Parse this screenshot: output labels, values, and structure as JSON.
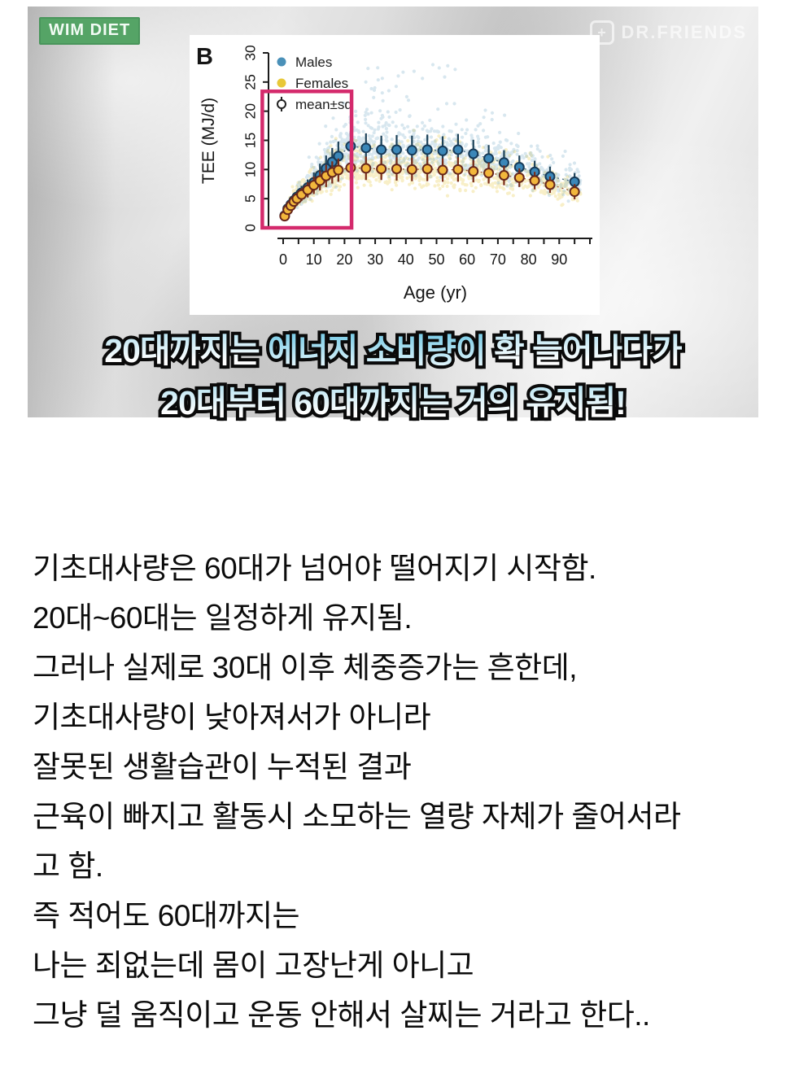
{
  "badge": {
    "label": "WIM DIET"
  },
  "watermark": {
    "label": "DR.FRIENDS",
    "icon": "plus-icon",
    "plus_glyph": "+"
  },
  "caption": {
    "lines": [
      {
        "segments": [
          {
            "text": "20대까지는 ",
            "em": false
          },
          {
            "text": "에너지 소비량이",
            "em": true
          },
          {
            "text": " 확 늘어나다가",
            "em": false
          }
        ]
      },
      {
        "segments": [
          {
            "text": "20대부터 60대까지는 거의 유지됨!",
            "em": false
          }
        ]
      }
    ]
  },
  "body_text": {
    "lines": [
      "기초대사량은 60대가 넘어야 떨어지기 시작함.",
      "20대~60대는 일정하게 유지됨.",
      "그러나 실제로 30대 이후 체중증가는 흔한데,",
      "기초대사량이 낮아져서가 아니라",
      "잘못된 생활습관이 누적된 결과",
      "근육이 빠지고 활동시 소모하는 열량 자체가 줄어서라",
      "고 함.",
      "즉 적어도 60대까지는",
      "나는 죄없는데 몸이 고장난게 아니고",
      "그냥 덜 움직이고 운동 안해서 살찌는 거라고 한다.."
    ]
  },
  "chart_data": {
    "type": "scatter",
    "panel_label": "B",
    "xlabel": "Age (yr)",
    "ylabel": "TEE (MJ/d)",
    "xlim": [
      -7,
      100
    ],
    "ylim": [
      0,
      30
    ],
    "x_ticks": [
      0,
      10,
      20,
      30,
      40,
      50,
      60,
      70,
      80,
      90
    ],
    "y_ticks": [
      0,
      5,
      10,
      15,
      20,
      25,
      30
    ],
    "grid": false,
    "legend_position": "top-left",
    "legend": [
      {
        "label": "Males",
        "type": "dot",
        "color": "#4a90b8"
      },
      {
        "label": "Females",
        "type": "dot",
        "color": "#e8c838"
      },
      {
        "label": "mean±sd",
        "type": "open-circle",
        "color": "#222222"
      }
    ],
    "series": [
      {
        "name": "Males mean±sd",
        "marker_fill": "#3b87b8",
        "marker_stroke": "#173a57",
        "errorbar_color": "#1d4259",
        "trend_color": "#4a6e8a",
        "x": [
          0.5,
          1.5,
          2.5,
          3.5,
          4.5,
          6,
          8,
          10,
          12,
          14,
          16,
          18,
          22,
          27,
          32,
          37,
          42,
          47,
          52,
          57,
          62,
          67,
          72,
          77,
          82,
          87,
          95
        ],
        "y": [
          2.1,
          3.3,
          4.0,
          4.7,
          5.3,
          6.0,
          6.9,
          7.8,
          9.0,
          10.2,
          11.3,
          12.3,
          14.0,
          13.7,
          13.4,
          13.4,
          13.3,
          13.4,
          13.2,
          13.4,
          12.7,
          11.9,
          11.2,
          10.4,
          9.6,
          8.8,
          7.9
        ],
        "sd": [
          0.7,
          0.9,
          1.0,
          1.0,
          1.1,
          1.2,
          1.4,
          1.7,
          2.0,
          2.2,
          2.4,
          2.5,
          2.6,
          2.5,
          2.4,
          2.5,
          2.5,
          2.6,
          2.5,
          2.7,
          2.4,
          2.3,
          2.1,
          2.0,
          1.9,
          1.7,
          1.5
        ]
      },
      {
        "name": "Females mean±sd",
        "marker_fill": "#f2b73c",
        "marker_stroke": "#66261b",
        "errorbar_color": "#7a2c18",
        "trend_color": "#9a5430",
        "x": [
          0.5,
          1.5,
          2.5,
          3.5,
          4.5,
          6,
          8,
          10,
          12,
          14,
          16,
          18,
          22,
          27,
          32,
          37,
          42,
          47,
          52,
          57,
          62,
          67,
          72,
          77,
          82,
          87,
          95
        ],
        "y": [
          2.0,
          3.1,
          3.8,
          4.5,
          5.0,
          5.7,
          6.5,
          7.3,
          8.1,
          8.9,
          9.5,
          9.9,
          10.3,
          10.2,
          10.1,
          10.1,
          10.0,
          10.1,
          9.9,
          10.0,
          9.7,
          9.4,
          9.0,
          8.6,
          8.1,
          7.4,
          6.2
        ],
        "sd": [
          0.6,
          0.8,
          0.9,
          0.9,
          1.0,
          1.1,
          1.3,
          1.5,
          1.7,
          1.9,
          1.9,
          2.0,
          2.0,
          2.0,
          1.9,
          2.0,
          2.0,
          2.1,
          2.0,
          2.1,
          1.9,
          1.8,
          1.7,
          1.6,
          1.5,
          1.4,
          1.3
        ]
      }
    ],
    "scatter_cloud": {
      "seed": 42,
      "n_per_sex": 1150,
      "jitter_sigma": 0.18,
      "males_color": "#5e9fc0",
      "males_opacity": 0.24,
      "females_color": "#e8c838",
      "females_opacity": 0.27,
      "male_outliers": 40,
      "female_outliers": 12
    },
    "highlight_box": {
      "x_min_age": -6.8,
      "x_max_age": 22.3,
      "y_min": 0,
      "y_max": 23.4,
      "color": "#d42a6c"
    }
  }
}
